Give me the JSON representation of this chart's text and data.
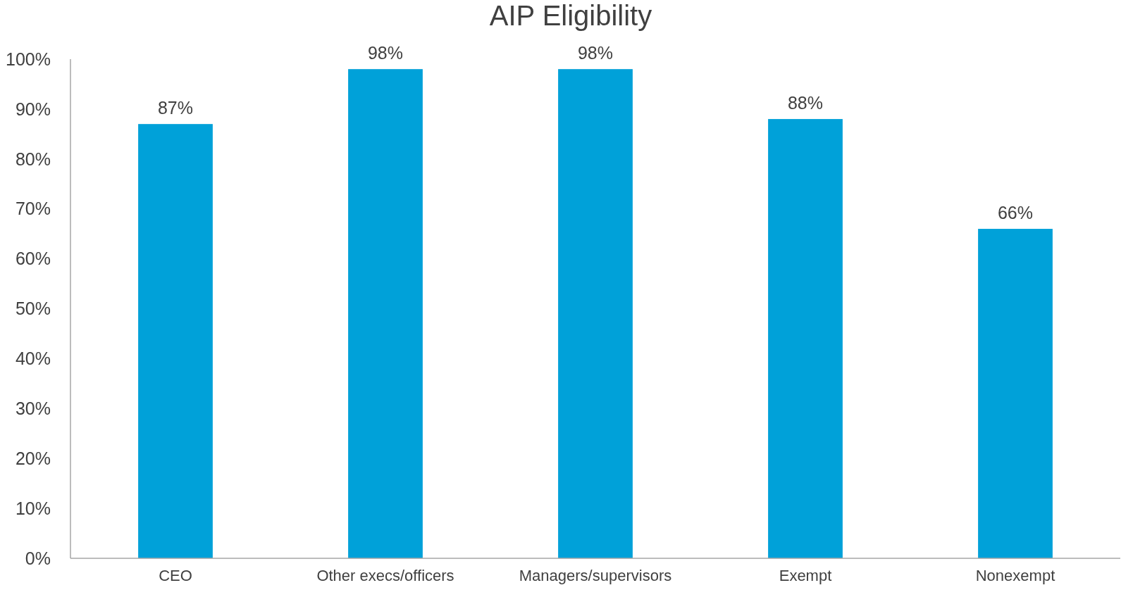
{
  "chart_data": {
    "type": "bar",
    "title": "AIP Eligibility",
    "categories": [
      "CEO",
      "Other execs/officers",
      "Managers/supervisors",
      "Exempt",
      "Nonexempt"
    ],
    "values": [
      87,
      98,
      98,
      88,
      66
    ],
    "value_labels": [
      "87%",
      "98%",
      "98%",
      "88%",
      "66%"
    ],
    "color": "#00a1d9",
    "ylim": [
      0,
      100
    ],
    "yticks": [
      {
        "value": 0,
        "label": "0%"
      },
      {
        "value": 10,
        "label": "10%"
      },
      {
        "value": 20,
        "label": "20%"
      },
      {
        "value": 30,
        "label": "30%"
      },
      {
        "value": 40,
        "label": "40%"
      },
      {
        "value": 50,
        "label": "50%"
      },
      {
        "value": 60,
        "label": "60%"
      },
      {
        "value": 70,
        "label": "70%"
      },
      {
        "value": 80,
        "label": "80%"
      },
      {
        "value": 90,
        "label": "90%"
      },
      {
        "value": 100,
        "label": "100%"
      }
    ],
    "grid": false
  }
}
